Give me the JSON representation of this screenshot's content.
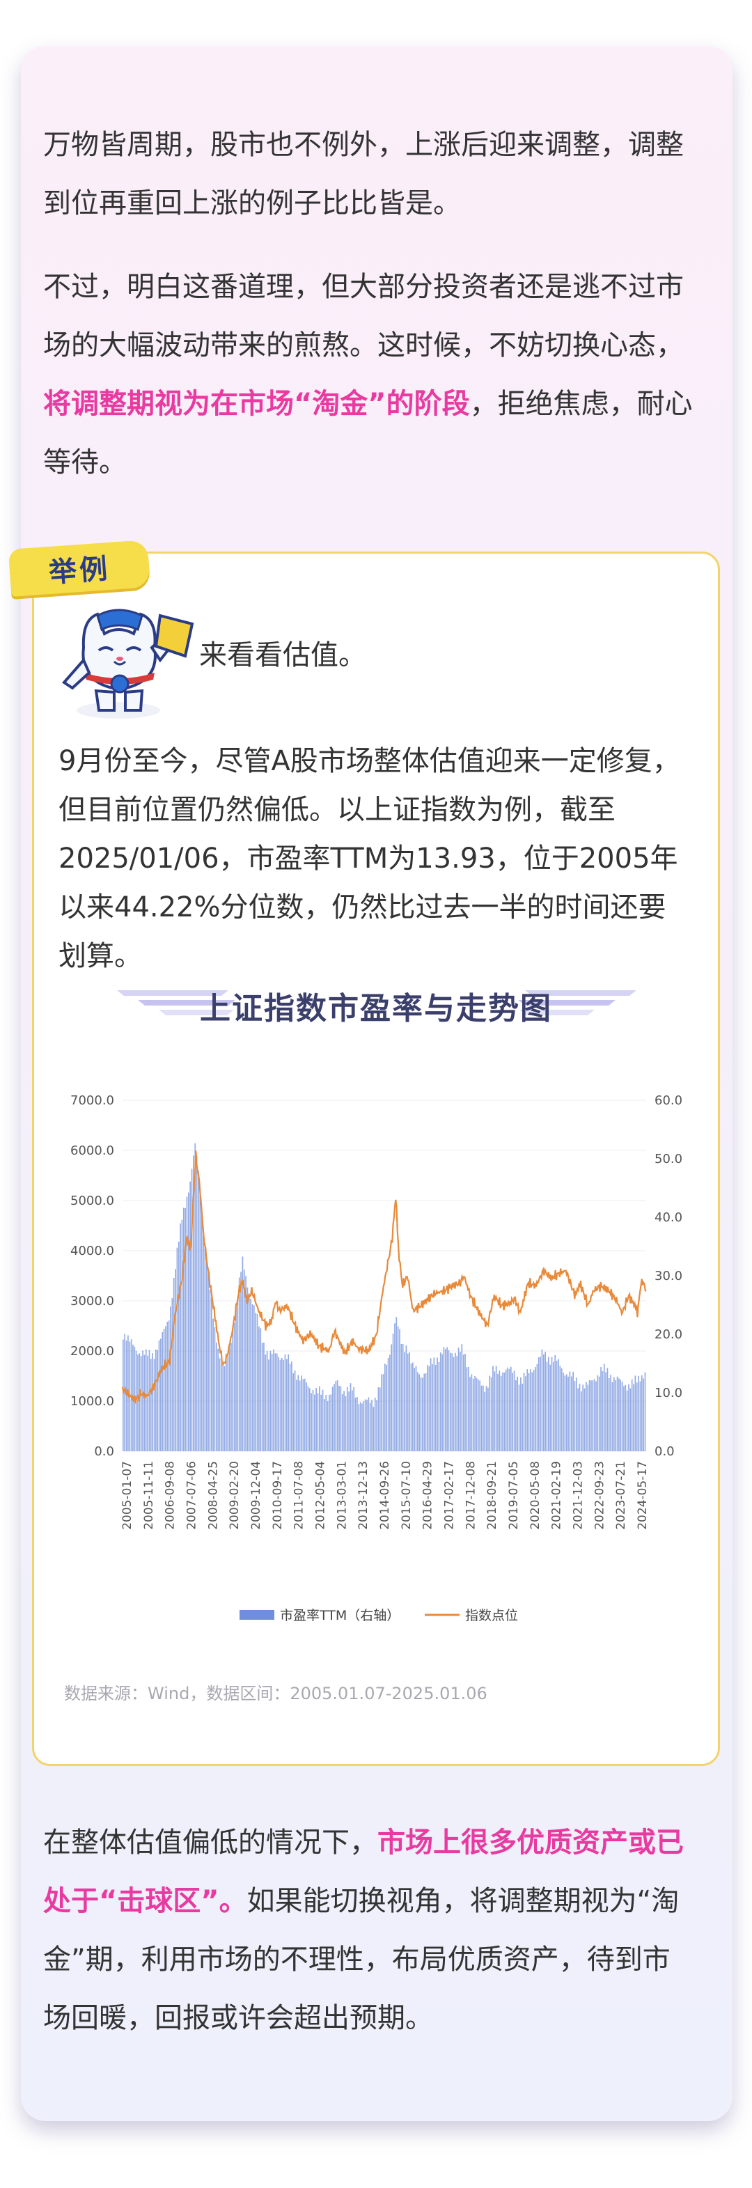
{
  "intro": {
    "p1": "万物皆周期，股市也不例外，上涨后迎来调整，调整到位再重回上涨的例子比比皆是。",
    "p2_a": "不过，明白这番道理，但大部分投资者还是逃不过市场的大幅波动带来的煎熬。这时候，不妨切换心态，",
    "p2_hl": "将调整期视为在市场“淘金”的阶段",
    "p2_b": "，拒绝焦虑，耐心等待。"
  },
  "example": {
    "tag": "举例",
    "mascot_text": "来看看估值。",
    "para": "9月份至今，尽管A股市场整体估值迎来一定修复，但目前位置仍然偏低。以上证指数为例，截至2025/01/06，市盈率TTM为13.93，位于2005年以来44.22%分位数，仍然比过去一半的时间还要划算。",
    "source": "数据来源：Wind，数据区间：2005.01.07-2025.01.06"
  },
  "chart_data": {
    "type": "bar",
    "title": "上证指数市盈率与走势图",
    "series": [
      {
        "name": "市盈率TTM（右轴）",
        "type": "bar",
        "axis": "right",
        "color": "#6f8fdc",
        "values": [
          [
            2005.0,
            20.5
          ],
          [
            2005.3,
            17.5
          ],
          [
            2005.6,
            16.5
          ],
          [
            2005.9,
            16.0
          ],
          [
            2006.2,
            17.5
          ],
          [
            2006.5,
            20.0
          ],
          [
            2006.8,
            24.0
          ],
          [
            2007.0,
            30.0
          ],
          [
            2007.3,
            40.0
          ],
          [
            2007.6,
            45.0
          ],
          [
            2007.8,
            52.0
          ],
          [
            2007.95,
            46.0
          ],
          [
            2008.1,
            38.0
          ],
          [
            2008.3,
            30.0
          ],
          [
            2008.5,
            23.0
          ],
          [
            2008.8,
            15.0
          ],
          [
            2008.95,
            14.0
          ],
          [
            2009.2,
            20.0
          ],
          [
            2009.45,
            27.0
          ],
          [
            2009.6,
            31.5
          ],
          [
            2009.8,
            28.0
          ],
          [
            2010.0,
            25.0
          ],
          [
            2010.3,
            21.0
          ],
          [
            2010.6,
            17.0
          ],
          [
            2010.9,
            17.0
          ],
          [
            2011.2,
            15.5
          ],
          [
            2011.5,
            13.5
          ],
          [
            2011.8,
            12.0
          ],
          [
            2012.0,
            11.5
          ],
          [
            2012.3,
            11.5
          ],
          [
            2012.6,
            10.5
          ],
          [
            2012.9,
            10.0
          ],
          [
            2013.2,
            11.0
          ],
          [
            2013.5,
            9.5
          ],
          [
            2013.8,
            9.8
          ],
          [
            2014.0,
            9.2
          ],
          [
            2014.3,
            9.0
          ],
          [
            2014.6,
            9.5
          ],
          [
            2014.9,
            12.0
          ],
          [
            2015.2,
            16.0
          ],
          [
            2015.45,
            22.0
          ],
          [
            2015.7,
            17.0
          ],
          [
            2015.9,
            18.0
          ],
          [
            2016.1,
            14.5
          ],
          [
            2016.4,
            14.0
          ],
          [
            2016.7,
            15.0
          ],
          [
            2016.9,
            15.5
          ],
          [
            2017.2,
            16.5
          ],
          [
            2017.5,
            16.0
          ],
          [
            2017.8,
            16.5
          ],
          [
            2018.0,
            17.0
          ],
          [
            2018.3,
            14.5
          ],
          [
            2018.6,
            12.5
          ],
          [
            2018.9,
            11.5
          ],
          [
            2019.2,
            13.0
          ],
          [
            2019.5,
            13.0
          ],
          [
            2019.8,
            13.0
          ],
          [
            2020.0,
            13.5
          ],
          [
            2020.3,
            12.5
          ],
          [
            2020.6,
            15.0
          ],
          [
            2020.9,
            15.5
          ],
          [
            2021.1,
            16.5
          ],
          [
            2021.4,
            15.0
          ],
          [
            2021.7,
            14.0
          ],
          [
            2021.9,
            13.5
          ],
          [
            2022.2,
            13.0
          ],
          [
            2022.5,
            12.5
          ],
          [
            2022.8,
            11.5
          ],
          [
            2023.0,
            12.5
          ],
          [
            2023.3,
            13.0
          ],
          [
            2023.6,
            12.5
          ],
          [
            2023.9,
            12.0
          ],
          [
            2024.1,
            11.5
          ],
          [
            2024.4,
            12.5
          ],
          [
            2024.7,
            12.5
          ],
          [
            2024.85,
            13.5
          ],
          [
            2025.0,
            14.0
          ]
        ]
      },
      {
        "name": "指数点位",
        "type": "line",
        "axis": "left",
        "color": "#e88a3a",
        "values": [
          [
            2005.0,
            1250
          ],
          [
            2005.3,
            1100
          ],
          [
            2005.5,
            1020
          ],
          [
            2005.7,
            1150
          ],
          [
            2005.95,
            1100
          ],
          [
            2006.2,
            1300
          ],
          [
            2006.5,
            1650
          ],
          [
            2006.8,
            1800
          ],
          [
            2007.0,
            2700
          ],
          [
            2007.3,
            3500
          ],
          [
            2007.45,
            4300
          ],
          [
            2007.6,
            4000
          ],
          [
            2007.8,
            5900
          ],
          [
            2007.95,
            5300
          ],
          [
            2008.1,
            4300
          ],
          [
            2008.3,
            3500
          ],
          [
            2008.5,
            2800
          ],
          [
            2008.7,
            2100
          ],
          [
            2008.85,
            1700
          ],
          [
            2009.0,
            1900
          ],
          [
            2009.2,
            2400
          ],
          [
            2009.45,
            3200
          ],
          [
            2009.6,
            3400
          ],
          [
            2009.75,
            3000
          ],
          [
            2009.95,
            3200
          ],
          [
            2010.2,
            2800
          ],
          [
            2010.5,
            2500
          ],
          [
            2010.7,
            2600
          ],
          [
            2010.85,
            3000
          ],
          [
            2011.0,
            2800
          ],
          [
            2011.3,
            2900
          ],
          [
            2011.6,
            2500
          ],
          [
            2011.9,
            2200
          ],
          [
            2012.2,
            2350
          ],
          [
            2012.5,
            2100
          ],
          [
            2012.9,
            2000
          ],
          [
            2013.1,
            2400
          ],
          [
            2013.5,
            1950
          ],
          [
            2013.8,
            2200
          ],
          [
            2014.0,
            2050
          ],
          [
            2014.4,
            2000
          ],
          [
            2014.7,
            2300
          ],
          [
            2014.95,
            3200
          ],
          [
            2015.3,
            4200
          ],
          [
            2015.45,
            5100
          ],
          [
            2015.55,
            4000
          ],
          [
            2015.7,
            3300
          ],
          [
            2015.9,
            3500
          ],
          [
            2016.1,
            2800
          ],
          [
            2016.4,
            2900
          ],
          [
            2016.7,
            3050
          ],
          [
            2016.95,
            3150
          ],
          [
            2017.3,
            3200
          ],
          [
            2017.6,
            3300
          ],
          [
            2017.9,
            3350
          ],
          [
            2018.05,
            3500
          ],
          [
            2018.3,
            3100
          ],
          [
            2018.6,
            2800
          ],
          [
            2018.95,
            2500
          ],
          [
            2019.2,
            3100
          ],
          [
            2019.5,
            2900
          ],
          [
            2019.8,
            2950
          ],
          [
            2020.0,
            3050
          ],
          [
            2020.2,
            2750
          ],
          [
            2020.5,
            3350
          ],
          [
            2020.8,
            3300
          ],
          [
            2021.1,
            3600
          ],
          [
            2021.4,
            3450
          ],
          [
            2021.7,
            3550
          ],
          [
            2021.95,
            3600
          ],
          [
            2022.3,
            3100
          ],
          [
            2022.5,
            3350
          ],
          [
            2022.8,
            2900
          ],
          [
            2023.0,
            3200
          ],
          [
            2023.3,
            3300
          ],
          [
            2023.6,
            3200
          ],
          [
            2023.9,
            3000
          ],
          [
            2024.1,
            2750
          ],
          [
            2024.35,
            3100
          ],
          [
            2024.6,
            2900
          ],
          [
            2024.7,
            2750
          ],
          [
            2024.8,
            3300
          ],
          [
            2024.9,
            3400
          ],
          [
            2025.0,
            3200
          ]
        ]
      }
    ],
    "x_tick_labels": [
      "2005-01-07",
      "2005-11-11",
      "2006-09-08",
      "2007-07-06",
      "2008-04-25",
      "2009-02-20",
      "2009-12-04",
      "2010-09-17",
      "2011-07-08",
      "2012-05-04",
      "2013-03-01",
      "2013-12-13",
      "2014-09-26",
      "2015-07-10",
      "2016-04-29",
      "2017-02-17",
      "2017-12-08",
      "2018-09-21",
      "2019-07-05",
      "2020-05-08",
      "2021-02-19",
      "2021-12-03",
      "2022-09-23",
      "2023-07-21",
      "2024-05-17"
    ],
    "xlim": [
      2005.0,
      2025.02
    ],
    "ylim_left": [
      0,
      7000
    ],
    "ylim_right": [
      0,
      60
    ],
    "y_left_ticks": [
      "0.0",
      "1000.0",
      "2000.0",
      "3000.0",
      "4000.0",
      "5000.0",
      "6000.0",
      "7000.0"
    ],
    "y_right_ticks": [
      "0.0",
      "10.0",
      "20.0",
      "30.0",
      "40.0",
      "50.0",
      "60.0"
    ],
    "grid": true,
    "legend": "bottom"
  },
  "outro": {
    "p_a": "在整体估值偏低的情况下，",
    "p_hl": "市场上很多优质资产或已处于“击球区”。",
    "p_b": "如果能切换视角，将调整期视为“淘金”期，利用市场的不理性，布局优质资产，待到市场回暖，回报或许会超出预期。"
  }
}
